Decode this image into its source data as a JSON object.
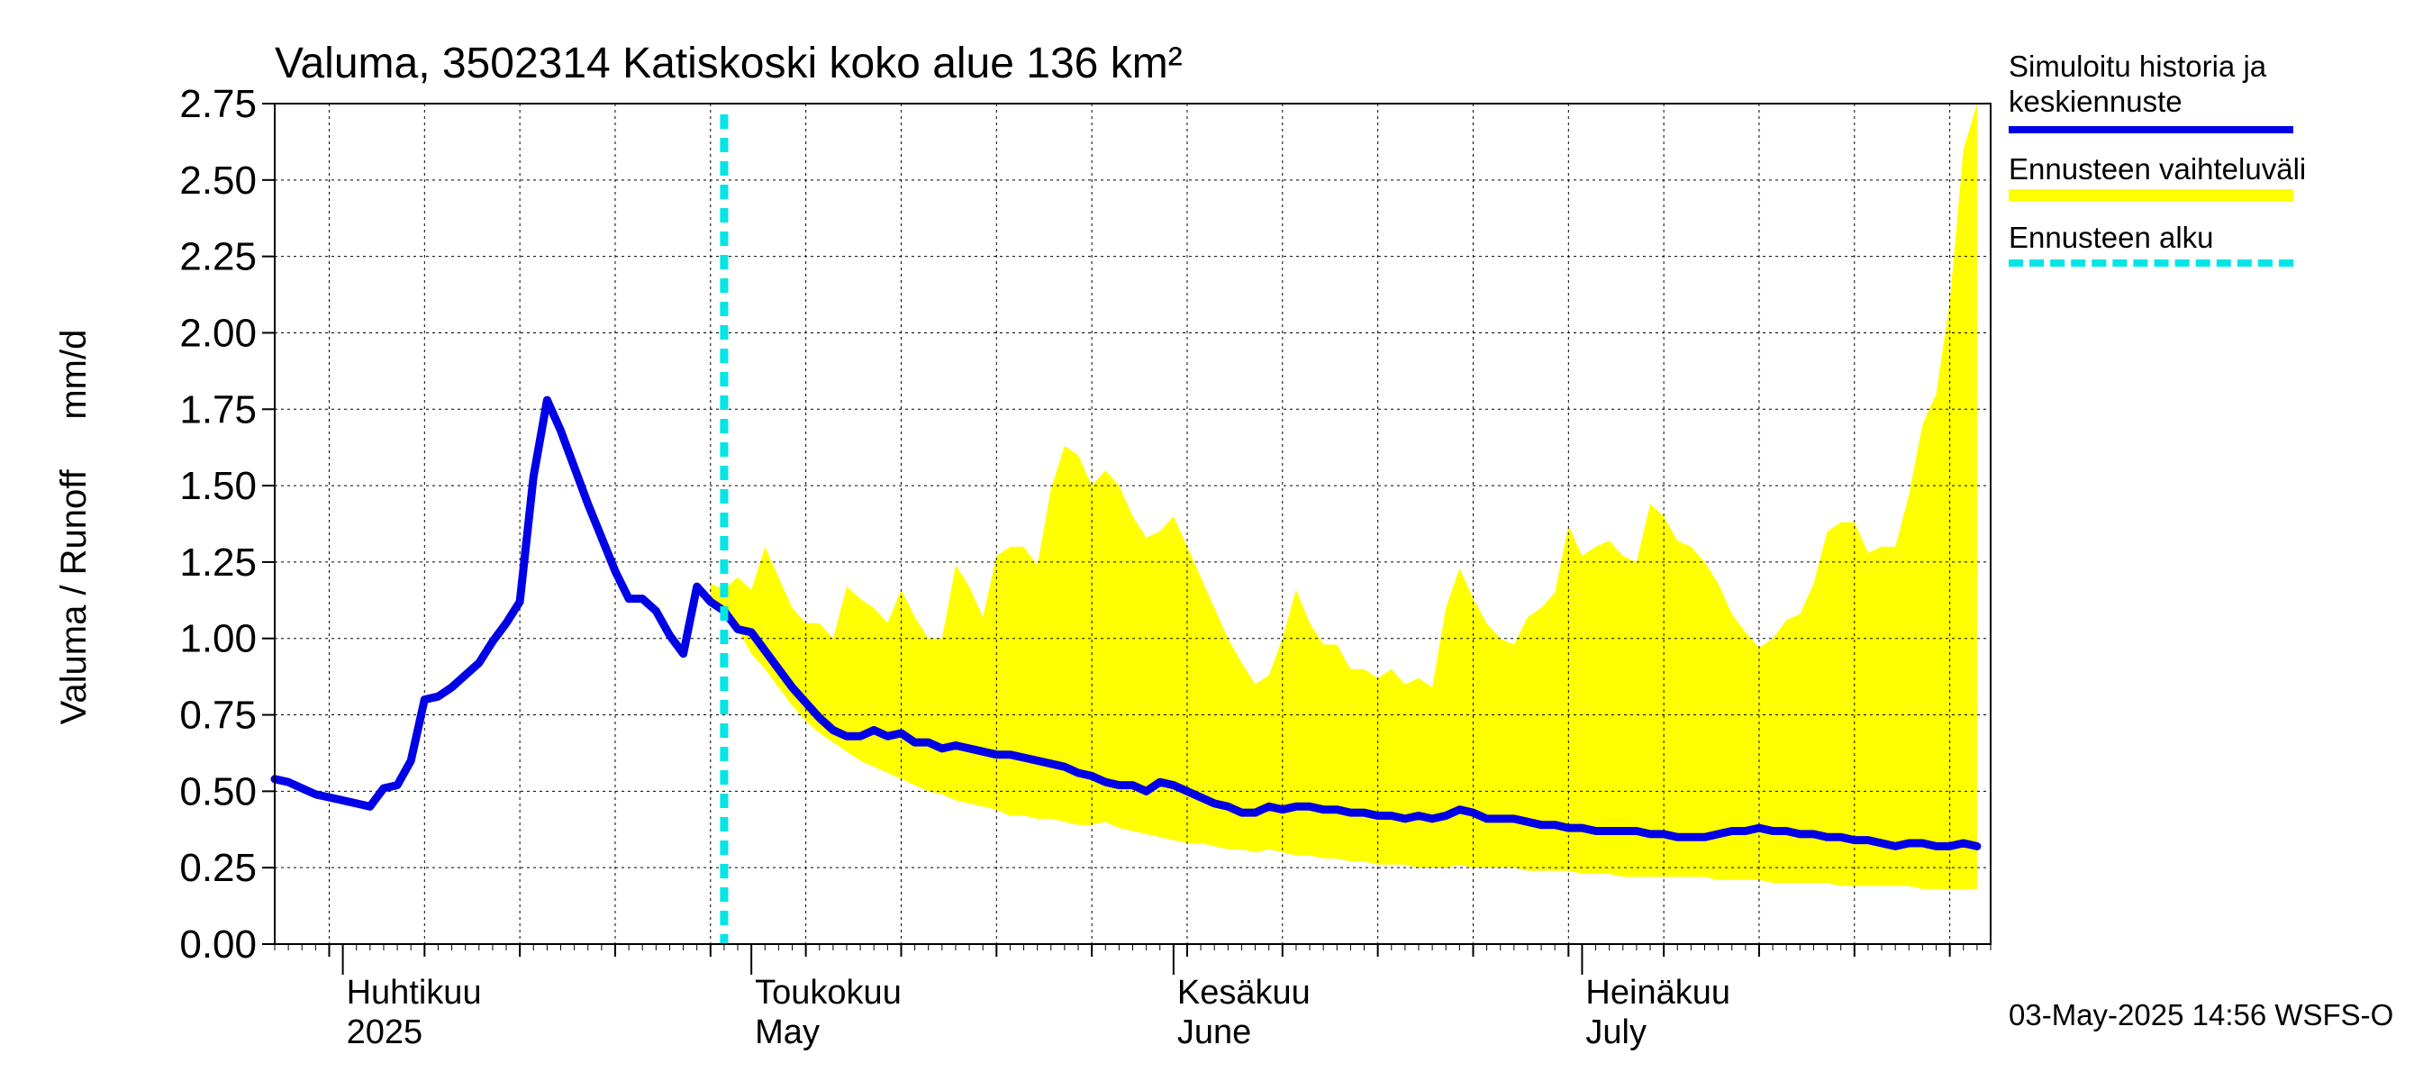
{
  "footer": "03-May-2025 14:56 WSFS-O",
  "legend": {
    "sim_line1": "Simuloitu historia ja",
    "sim_line2": "keskiennuste",
    "range": "Ennusteen vaihteluväli",
    "start": "Ennusteen alku"
  },
  "colors": {
    "history": "#0000e6",
    "range": "#ffff00",
    "forecast_start": "#00e5e5",
    "grid": "#000000"
  },
  "chart_data": {
    "type": "line",
    "title": "Valuma, 3502314 Katiskoski koko alue 136 km²",
    "ylabel": "Valuma / Runoff     mm/d",
    "ylim": [
      0,
      2.75
    ],
    "yticks": [
      "0.00",
      "0.25",
      "0.50",
      "0.75",
      "1.00",
      "1.25",
      "1.50",
      "1.75",
      "2.00",
      "2.25",
      "2.50",
      "2.75"
    ],
    "xlim": [
      "2025-03-27",
      "2025-07-31"
    ],
    "x_labels": [
      {
        "date": "2025-04-01",
        "line1": "Huhtikuu",
        "line2": "2025"
      },
      {
        "date": "2025-05-01",
        "line1": "Toukokuu",
        "line2": "May"
      },
      {
        "date": "2025-06-01",
        "line1": "Kesäkuu",
        "line2": "June"
      },
      {
        "date": "2025-07-01",
        "line1": "Heinäkuu",
        "line2": "July"
      }
    ],
    "forecast_start": "2025-04-29",
    "grid": true,
    "series": [
      {
        "name": "Simuloitu historia ja keskiennuste",
        "type": "line",
        "points": [
          [
            "2025-03-27",
            0.54
          ],
          [
            "2025-03-28",
            0.53
          ],
          [
            "2025-03-29",
            0.51
          ],
          [
            "2025-03-30",
            0.49
          ],
          [
            "2025-03-31",
            0.48
          ],
          [
            "2025-04-01",
            0.47
          ],
          [
            "2025-04-02",
            0.46
          ],
          [
            "2025-04-03",
            0.45
          ],
          [
            "2025-04-04",
            0.51
          ],
          [
            "2025-04-05",
            0.52
          ],
          [
            "2025-04-06",
            0.6
          ],
          [
            "2025-04-07",
            0.8
          ],
          [
            "2025-04-08",
            0.81
          ],
          [
            "2025-04-09",
            0.84
          ],
          [
            "2025-04-10",
            0.88
          ],
          [
            "2025-04-11",
            0.92
          ],
          [
            "2025-04-12",
            0.99
          ],
          [
            "2025-04-13",
            1.05
          ],
          [
            "2025-04-14",
            1.12
          ],
          [
            "2025-04-15",
            1.53
          ],
          [
            "2025-04-16",
            1.78
          ],
          [
            "2025-04-17",
            1.68
          ],
          [
            "2025-04-18",
            1.56
          ],
          [
            "2025-04-19",
            1.44
          ],
          [
            "2025-04-20",
            1.33
          ],
          [
            "2025-04-21",
            1.22
          ],
          [
            "2025-04-22",
            1.13
          ],
          [
            "2025-04-23",
            1.13
          ],
          [
            "2025-04-24",
            1.09
          ],
          [
            "2025-04-25",
            1.01
          ],
          [
            "2025-04-26",
            0.95
          ],
          [
            "2025-04-27",
            1.17
          ],
          [
            "2025-04-28",
            1.12
          ],
          [
            "2025-04-29",
            1.09
          ],
          [
            "2025-04-30",
            1.03
          ],
          [
            "2025-05-01",
            1.02
          ],
          [
            "2025-05-02",
            0.96
          ],
          [
            "2025-05-03",
            0.9
          ],
          [
            "2025-05-04",
            0.84
          ],
          [
            "2025-05-05",
            0.79
          ],
          [
            "2025-05-06",
            0.74
          ],
          [
            "2025-05-07",
            0.7
          ],
          [
            "2025-05-08",
            0.68
          ],
          [
            "2025-05-09",
            0.68
          ],
          [
            "2025-05-10",
            0.7
          ],
          [
            "2025-05-11",
            0.68
          ],
          [
            "2025-05-12",
            0.69
          ],
          [
            "2025-05-13",
            0.66
          ],
          [
            "2025-05-14",
            0.66
          ],
          [
            "2025-05-15",
            0.64
          ],
          [
            "2025-05-16",
            0.65
          ],
          [
            "2025-05-17",
            0.64
          ],
          [
            "2025-05-18",
            0.63
          ],
          [
            "2025-05-19",
            0.62
          ],
          [
            "2025-05-20",
            0.62
          ],
          [
            "2025-05-21",
            0.61
          ],
          [
            "2025-05-22",
            0.6
          ],
          [
            "2025-05-23",
            0.59
          ],
          [
            "2025-05-24",
            0.58
          ],
          [
            "2025-05-25",
            0.56
          ],
          [
            "2025-05-26",
            0.55
          ],
          [
            "2025-05-27",
            0.53
          ],
          [
            "2025-05-28",
            0.52
          ],
          [
            "2025-05-29",
            0.52
          ],
          [
            "2025-05-30",
            0.5
          ],
          [
            "2025-05-31",
            0.53
          ],
          [
            "2025-06-01",
            0.52
          ],
          [
            "2025-06-02",
            0.5
          ],
          [
            "2025-06-03",
            0.48
          ],
          [
            "2025-06-04",
            0.46
          ],
          [
            "2025-06-05",
            0.45
          ],
          [
            "2025-06-06",
            0.43
          ],
          [
            "2025-06-07",
            0.43
          ],
          [
            "2025-06-08",
            0.45
          ],
          [
            "2025-06-09",
            0.44
          ],
          [
            "2025-06-10",
            0.45
          ],
          [
            "2025-06-11",
            0.45
          ],
          [
            "2025-06-12",
            0.44
          ],
          [
            "2025-06-13",
            0.44
          ],
          [
            "2025-06-14",
            0.43
          ],
          [
            "2025-06-15",
            0.43
          ],
          [
            "2025-06-16",
            0.42
          ],
          [
            "2025-06-17",
            0.42
          ],
          [
            "2025-06-18",
            0.41
          ],
          [
            "2025-06-19",
            0.42
          ],
          [
            "2025-06-20",
            0.41
          ],
          [
            "2025-06-21",
            0.42
          ],
          [
            "2025-06-22",
            0.44
          ],
          [
            "2025-06-23",
            0.43
          ],
          [
            "2025-06-24",
            0.41
          ],
          [
            "2025-06-25",
            0.41
          ],
          [
            "2025-06-26",
            0.41
          ],
          [
            "2025-06-27",
            0.4
          ],
          [
            "2025-06-28",
            0.39
          ],
          [
            "2025-06-29",
            0.39
          ],
          [
            "2025-06-30",
            0.38
          ],
          [
            "2025-07-01",
            0.38
          ],
          [
            "2025-07-02",
            0.37
          ],
          [
            "2025-07-03",
            0.37
          ],
          [
            "2025-07-04",
            0.37
          ],
          [
            "2025-07-05",
            0.37
          ],
          [
            "2025-07-06",
            0.36
          ],
          [
            "2025-07-07",
            0.36
          ],
          [
            "2025-07-08",
            0.35
          ],
          [
            "2025-07-09",
            0.35
          ],
          [
            "2025-07-10",
            0.35
          ],
          [
            "2025-07-11",
            0.36
          ],
          [
            "2025-07-12",
            0.37
          ],
          [
            "2025-07-13",
            0.37
          ],
          [
            "2025-07-14",
            0.38
          ],
          [
            "2025-07-15",
            0.37
          ],
          [
            "2025-07-16",
            0.37
          ],
          [
            "2025-07-17",
            0.36
          ],
          [
            "2025-07-18",
            0.36
          ],
          [
            "2025-07-19",
            0.35
          ],
          [
            "2025-07-20",
            0.35
          ],
          [
            "2025-07-21",
            0.34
          ],
          [
            "2025-07-22",
            0.34
          ],
          [
            "2025-07-23",
            0.33
          ],
          [
            "2025-07-24",
            0.32
          ],
          [
            "2025-07-25",
            0.33
          ],
          [
            "2025-07-26",
            0.33
          ],
          [
            "2025-07-27",
            0.32
          ],
          [
            "2025-07-28",
            0.32
          ],
          [
            "2025-07-29",
            0.33
          ],
          [
            "2025-07-30",
            0.32
          ]
        ]
      },
      {
        "name": "Ennusteen vaihteluväli",
        "type": "band",
        "points": [
          [
            "2025-04-28",
            1.12,
            1.18
          ],
          [
            "2025-04-29",
            1.09,
            1.16
          ],
          [
            "2025-04-30",
            1.03,
            1.2
          ],
          [
            "2025-05-01",
            0.95,
            1.16
          ],
          [
            "2025-05-02",
            0.9,
            1.3
          ],
          [
            "2025-05-03",
            0.84,
            1.2
          ],
          [
            "2025-05-04",
            0.78,
            1.1
          ],
          [
            "2025-05-05",
            0.73,
            1.05
          ],
          [
            "2025-05-06",
            0.69,
            1.05
          ],
          [
            "2025-05-07",
            0.66,
            1.0
          ],
          [
            "2025-05-08",
            0.63,
            1.17
          ],
          [
            "2025-05-09",
            0.6,
            1.13
          ],
          [
            "2025-05-10",
            0.58,
            1.1
          ],
          [
            "2025-05-11",
            0.56,
            1.05
          ],
          [
            "2025-05-12",
            0.54,
            1.16
          ],
          [
            "2025-05-13",
            0.52,
            1.07
          ],
          [
            "2025-05-14",
            0.5,
            1.0
          ],
          [
            "2025-05-15",
            0.49,
            1.0
          ],
          [
            "2025-05-16",
            0.47,
            1.24
          ],
          [
            "2025-05-17",
            0.46,
            1.17
          ],
          [
            "2025-05-18",
            0.45,
            1.07
          ],
          [
            "2025-05-19",
            0.44,
            1.27
          ],
          [
            "2025-05-20",
            0.42,
            1.3
          ],
          [
            "2025-05-21",
            0.42,
            1.3
          ],
          [
            "2025-05-22",
            0.41,
            1.24
          ],
          [
            "2025-05-23",
            0.41,
            1.49
          ],
          [
            "2025-05-24",
            0.4,
            1.63
          ],
          [
            "2025-05-25",
            0.39,
            1.6
          ],
          [
            "2025-05-26",
            0.39,
            1.5
          ],
          [
            "2025-05-27",
            0.4,
            1.55
          ],
          [
            "2025-05-28",
            0.38,
            1.5
          ],
          [
            "2025-05-29",
            0.37,
            1.4
          ],
          [
            "2025-05-30",
            0.36,
            1.33
          ],
          [
            "2025-05-31",
            0.35,
            1.35
          ],
          [
            "2025-06-01",
            0.34,
            1.4
          ],
          [
            "2025-06-02",
            0.33,
            1.3
          ],
          [
            "2025-06-03",
            0.33,
            1.2
          ],
          [
            "2025-06-04",
            0.32,
            1.1
          ],
          [
            "2025-06-05",
            0.31,
            1.0
          ],
          [
            "2025-06-06",
            0.31,
            0.92
          ],
          [
            "2025-06-07",
            0.3,
            0.85
          ],
          [
            "2025-06-08",
            0.31,
            0.88
          ],
          [
            "2025-06-09",
            0.3,
            1.0
          ],
          [
            "2025-06-10",
            0.29,
            1.16
          ],
          [
            "2025-06-11",
            0.29,
            1.05
          ],
          [
            "2025-06-12",
            0.28,
            0.98
          ],
          [
            "2025-06-13",
            0.28,
            0.98
          ],
          [
            "2025-06-14",
            0.27,
            0.9
          ],
          [
            "2025-06-15",
            0.27,
            0.9
          ],
          [
            "2025-06-16",
            0.26,
            0.87
          ],
          [
            "2025-06-17",
            0.26,
            0.9
          ],
          [
            "2025-06-18",
            0.26,
            0.85
          ],
          [
            "2025-06-19",
            0.25,
            0.87
          ],
          [
            "2025-06-20",
            0.25,
            0.84
          ],
          [
            "2025-06-21",
            0.25,
            1.1
          ],
          [
            "2025-06-22",
            0.26,
            1.23
          ],
          [
            "2025-06-23",
            0.25,
            1.13
          ],
          [
            "2025-06-24",
            0.25,
            1.05
          ],
          [
            "2025-06-25",
            0.25,
            1.0
          ],
          [
            "2025-06-26",
            0.25,
            0.98
          ],
          [
            "2025-06-27",
            0.24,
            1.07
          ],
          [
            "2025-06-28",
            0.24,
            1.1
          ],
          [
            "2025-06-29",
            0.24,
            1.15
          ],
          [
            "2025-06-30",
            0.24,
            1.37
          ],
          [
            "2025-07-01",
            0.23,
            1.27
          ],
          [
            "2025-07-02",
            0.23,
            1.3
          ],
          [
            "2025-07-03",
            0.23,
            1.32
          ],
          [
            "2025-07-04",
            0.22,
            1.27
          ],
          [
            "2025-07-05",
            0.22,
            1.25
          ],
          [
            "2025-07-06",
            0.22,
            1.44
          ],
          [
            "2025-07-07",
            0.22,
            1.4
          ],
          [
            "2025-07-08",
            0.22,
            1.32
          ],
          [
            "2025-07-09",
            0.22,
            1.3
          ],
          [
            "2025-07-10",
            0.22,
            1.25
          ],
          [
            "2025-07-11",
            0.21,
            1.18
          ],
          [
            "2025-07-12",
            0.21,
            1.08
          ],
          [
            "2025-07-13",
            0.21,
            1.02
          ],
          [
            "2025-07-14",
            0.21,
            0.97
          ],
          [
            "2025-07-15",
            0.2,
            1.0
          ],
          [
            "2025-07-16",
            0.2,
            1.06
          ],
          [
            "2025-07-17",
            0.2,
            1.08
          ],
          [
            "2025-07-18",
            0.2,
            1.18
          ],
          [
            "2025-07-19",
            0.2,
            1.35
          ],
          [
            "2025-07-20",
            0.19,
            1.38
          ],
          [
            "2025-07-21",
            0.19,
            1.38
          ],
          [
            "2025-07-22",
            0.19,
            1.28
          ],
          [
            "2025-07-23",
            0.19,
            1.3
          ],
          [
            "2025-07-24",
            0.19,
            1.3
          ],
          [
            "2025-07-25",
            0.19,
            1.47
          ],
          [
            "2025-07-26",
            0.18,
            1.7
          ],
          [
            "2025-07-27",
            0.18,
            1.8
          ],
          [
            "2025-07-28",
            0.18,
            2.1
          ],
          [
            "2025-07-29",
            0.18,
            2.6
          ],
          [
            "2025-07-30",
            0.18,
            2.75
          ]
        ]
      }
    ]
  }
}
